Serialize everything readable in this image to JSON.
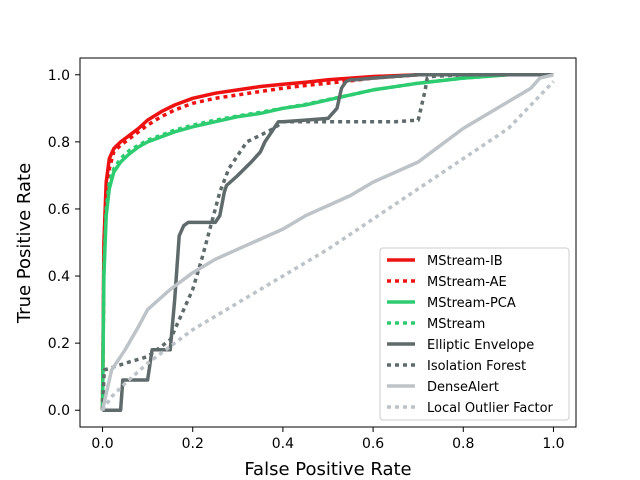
{
  "chart_data": {
    "type": "line",
    "title": "",
    "xlabel": "False Positive Rate",
    "ylabel": "True Positive Rate",
    "xlim": [
      -0.05,
      1.05
    ],
    "ylim": [
      -0.05,
      1.05
    ],
    "xticks": [
      0.0,
      0.2,
      0.4,
      0.6,
      0.8,
      1.0
    ],
    "xtick_labels": [
      "0.0",
      "0.2",
      "0.4",
      "0.6",
      "0.8",
      "1.0"
    ],
    "yticks": [
      0.0,
      0.2,
      0.4,
      0.6,
      0.8,
      1.0
    ],
    "ytick_labels": [
      "0.0",
      "0.2",
      "0.4",
      "0.6",
      "0.8",
      "1.0"
    ],
    "grid": false,
    "legend_position": "bottom-right",
    "series": [
      {
        "name": "MStream-IB",
        "color": "#ee1111",
        "style": "solid",
        "x": [
          0,
          0.003,
          0.008,
          0.015,
          0.025,
          0.04,
          0.06,
          0.08,
          0.1,
          0.13,
          0.16,
          0.2,
          0.25,
          0.3,
          0.35,
          0.4,
          0.45,
          0.5,
          0.55,
          0.6,
          0.7,
          0.8,
          1.0
        ],
        "y": [
          0,
          0.5,
          0.68,
          0.75,
          0.78,
          0.8,
          0.82,
          0.84,
          0.865,
          0.89,
          0.91,
          0.93,
          0.945,
          0.955,
          0.965,
          0.972,
          0.978,
          0.985,
          0.99,
          0.995,
          1.0,
          1.0,
          1.0
        ]
      },
      {
        "name": "MStream-AE",
        "color": "#ee1111",
        "style": "dotted",
        "x": [
          0,
          0.003,
          0.008,
          0.015,
          0.025,
          0.04,
          0.06,
          0.08,
          0.1,
          0.13,
          0.16,
          0.2,
          0.25,
          0.3,
          0.35,
          0.4,
          0.45,
          0.5,
          0.55,
          0.6,
          0.65,
          0.7,
          0.75,
          1.0
        ],
        "y": [
          0,
          0.45,
          0.62,
          0.72,
          0.77,
          0.79,
          0.81,
          0.83,
          0.85,
          0.875,
          0.895,
          0.915,
          0.93,
          0.94,
          0.95,
          0.96,
          0.968,
          0.975,
          0.982,
          0.99,
          0.995,
          1.0,
          1.0,
          1.0
        ]
      },
      {
        "name": "MStream-PCA",
        "color": "#2ecc71",
        "style": "solid",
        "x": [
          0,
          0.003,
          0.008,
          0.015,
          0.025,
          0.04,
          0.06,
          0.08,
          0.1,
          0.13,
          0.16,
          0.2,
          0.25,
          0.3,
          0.35,
          0.4,
          0.45,
          0.5,
          0.55,
          0.6,
          0.7,
          0.8,
          0.9,
          1.0
        ],
        "y": [
          0,
          0.4,
          0.58,
          0.66,
          0.71,
          0.74,
          0.765,
          0.785,
          0.8,
          0.815,
          0.83,
          0.845,
          0.86,
          0.875,
          0.885,
          0.9,
          0.91,
          0.925,
          0.94,
          0.955,
          0.975,
          0.99,
          1.0,
          1.0
        ]
      },
      {
        "name": "MStream",
        "color": "#2ecc71",
        "style": "dotted",
        "x": [
          0,
          0.003,
          0.008,
          0.015,
          0.025,
          0.04,
          0.06,
          0.08,
          0.1,
          0.13,
          0.16,
          0.2,
          0.25,
          0.3,
          0.35,
          0.4,
          0.45,
          0.5,
          0.55,
          0.6,
          0.7,
          0.8,
          0.9,
          1.0
        ],
        "y": [
          0,
          0.42,
          0.6,
          0.68,
          0.72,
          0.75,
          0.775,
          0.79,
          0.805,
          0.82,
          0.835,
          0.85,
          0.865,
          0.877,
          0.888,
          0.9,
          0.912,
          0.926,
          0.94,
          0.955,
          0.975,
          0.99,
          1.0,
          1.0
        ]
      },
      {
        "name": "Elliptic Envelope",
        "color": "#5f6a6a",
        "style": "solid",
        "x": [
          0,
          0.005,
          0.04,
          0.045,
          0.06,
          0.1,
          0.11,
          0.15,
          0.16,
          0.17,
          0.18,
          0.19,
          0.25,
          0.26,
          0.27,
          0.275,
          0.3,
          0.33,
          0.35,
          0.36,
          0.37,
          0.38,
          0.39,
          0.4,
          0.45,
          0.5,
          0.52,
          0.53,
          0.54,
          0.55,
          0.56,
          0.6,
          0.7,
          0.8,
          1.0
        ],
        "y": [
          0,
          0,
          0,
          0.09,
          0.09,
          0.09,
          0.18,
          0.18,
          0.33,
          0.52,
          0.55,
          0.56,
          0.56,
          0.58,
          0.65,
          0.67,
          0.7,
          0.74,
          0.77,
          0.8,
          0.82,
          0.84,
          0.86,
          0.86,
          0.865,
          0.87,
          0.9,
          0.96,
          0.98,
          0.985,
          0.985,
          0.99,
          1.0,
          1.0,
          1.0
        ]
      },
      {
        "name": "Isolation Forest",
        "color": "#5f6a6a",
        "style": "dotted",
        "x": [
          0,
          0.004,
          0.05,
          0.1,
          0.15,
          0.17,
          0.2,
          0.22,
          0.24,
          0.26,
          0.28,
          0.3,
          0.32,
          0.35,
          0.38,
          0.4,
          0.45,
          0.5,
          0.55,
          0.6,
          0.65,
          0.7,
          0.715,
          0.72,
          0.73,
          0.8,
          0.9,
          1.0
        ],
        "y": [
          0,
          0.12,
          0.14,
          0.16,
          0.21,
          0.27,
          0.36,
          0.45,
          0.55,
          0.65,
          0.72,
          0.76,
          0.8,
          0.82,
          0.84,
          0.86,
          0.86,
          0.86,
          0.86,
          0.86,
          0.86,
          0.865,
          0.95,
          0.99,
          0.995,
          1.0,
          1.0,
          1.0
        ]
      },
      {
        "name": "DenseAlert",
        "color": "#bdc3c7",
        "style": "solid",
        "x": [
          0,
          0.02,
          0.05,
          0.08,
          0.1,
          0.15,
          0.2,
          0.25,
          0.3,
          0.35,
          0.4,
          0.45,
          0.5,
          0.55,
          0.6,
          0.65,
          0.7,
          0.75,
          0.8,
          0.85,
          0.9,
          0.95,
          0.97,
          1.0
        ],
        "y": [
          0,
          0.12,
          0.18,
          0.25,
          0.3,
          0.36,
          0.41,
          0.45,
          0.48,
          0.51,
          0.54,
          0.58,
          0.61,
          0.64,
          0.68,
          0.71,
          0.74,
          0.79,
          0.84,
          0.88,
          0.92,
          0.96,
          0.99,
          1.0
        ]
      },
      {
        "name": "Local Outlier Factor",
        "color": "#bdc3c7",
        "style": "dotted",
        "x": [
          0,
          0.02,
          0.05,
          0.1,
          0.2,
          0.3,
          0.4,
          0.5,
          0.6,
          0.7,
          0.8,
          0.9,
          0.95,
          1.0
        ],
        "y": [
          0,
          0.04,
          0.08,
          0.14,
          0.24,
          0.32,
          0.4,
          0.48,
          0.57,
          0.66,
          0.75,
          0.84,
          0.91,
          0.98
        ]
      }
    ]
  }
}
